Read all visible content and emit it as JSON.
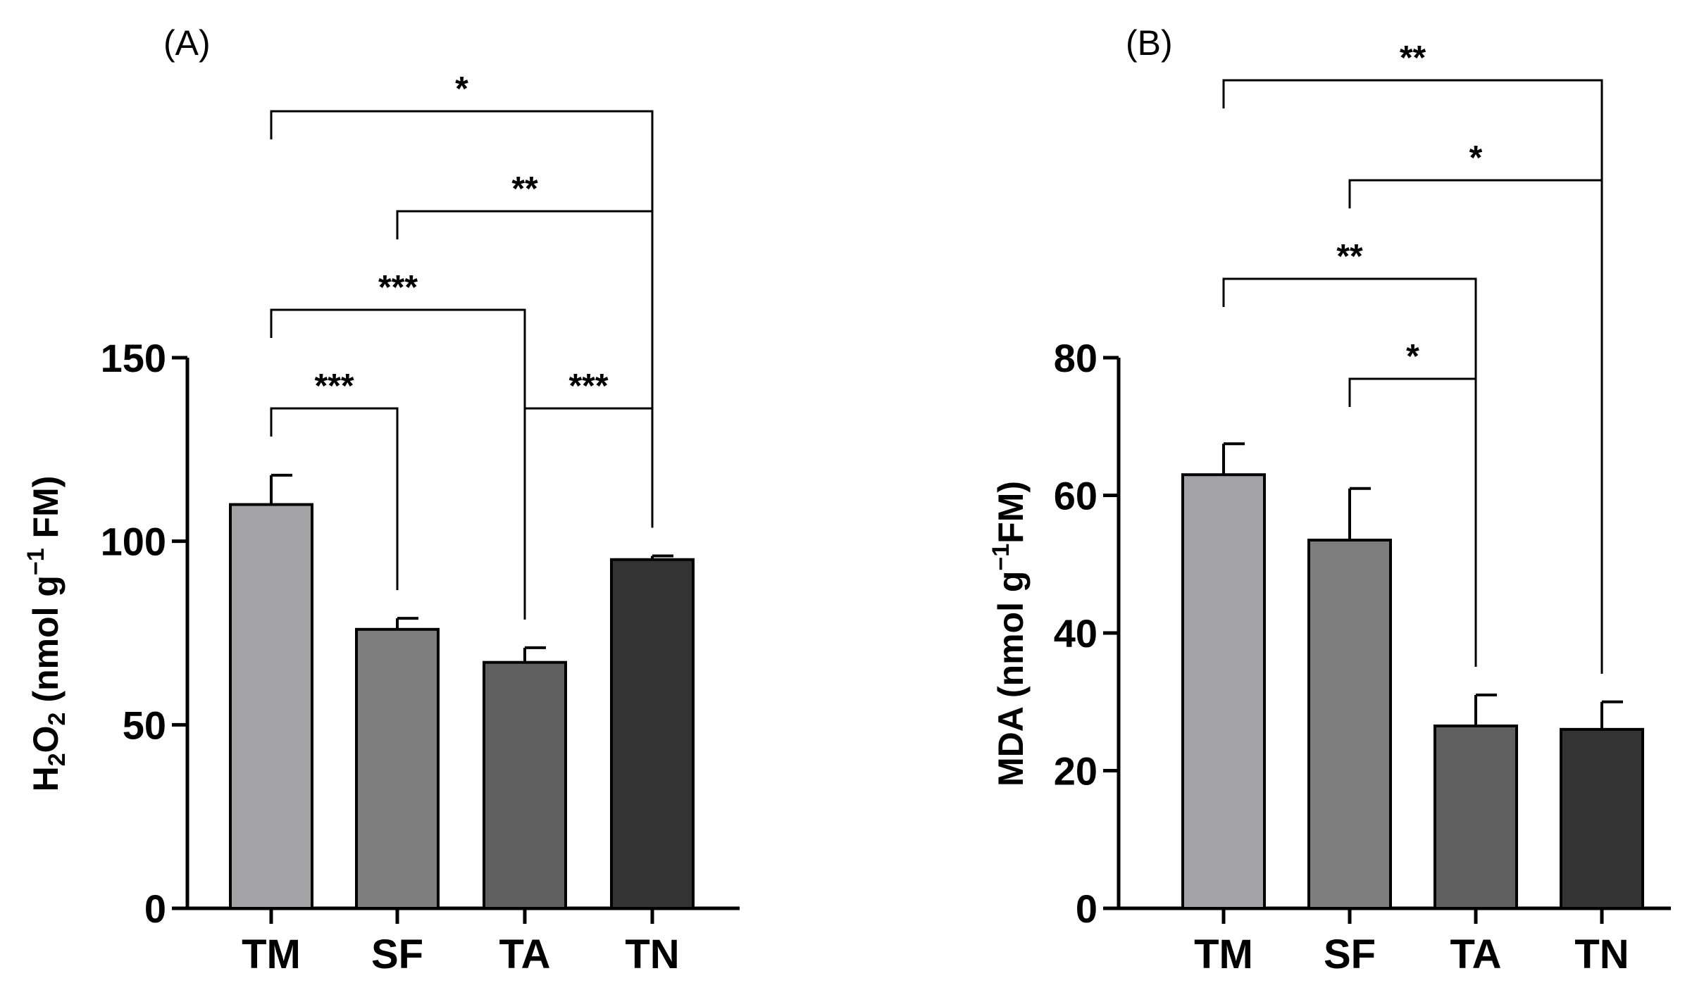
{
  "chart_data": [
    {
      "type": "bar",
      "panel_label": "(A)",
      "categories": [
        "TM",
        "SF",
        "TA",
        "TN"
      ],
      "values": [
        110,
        76,
        67,
        95
      ],
      "errors": [
        8,
        3,
        4,
        1
      ],
      "colors": [
        "#A3A3A6",
        "#7E7E7E",
        "#606060",
        "#333333"
      ],
      "ylabel": "H2O2 (nmol g−1 FM)",
      "ylabel_parts": {
        "a": "H",
        "a_sub": "2",
        "b": "O",
        "b_sub": "2",
        "c": " (nmol g",
        "c_sup": "−1",
        "d": " FM)"
      },
      "ylim": [
        0,
        150
      ],
      "yticks": [
        "0",
        "50",
        "100",
        "150"
      ],
      "yticks_values": [
        0,
        50,
        100,
        150
      ],
      "significance": [
        {
          "from": 0,
          "to": 1,
          "label": "***"
        },
        {
          "from": 2,
          "to": 3,
          "label": "***"
        },
        {
          "from": 0,
          "to": 2,
          "label": "***"
        },
        {
          "from": 1,
          "to": 3,
          "label": "**"
        },
        {
          "from": 0,
          "to": 3,
          "label": "*"
        }
      ]
    },
    {
      "type": "bar",
      "panel_label": "(B)",
      "categories": [
        "TM",
        "SF",
        "TA",
        "TN"
      ],
      "values": [
        63,
        53.5,
        26.5,
        26
      ],
      "errors": [
        4.5,
        7.5,
        4.5,
        4
      ],
      "colors": [
        "#A3A3A6",
        "#7E7E7E",
        "#606060",
        "#333333"
      ],
      "ylabel": "MDA (nmol g−1FM)",
      "ylabel_parts": {
        "a": "MDA (nmol g",
        "a_sup": "−1",
        "b": "FM)"
      },
      "ylim": [
        0,
        80
      ],
      "yticks": [
        "0",
        "20",
        "40",
        "60",
        "80"
      ],
      "yticks_values": [
        0,
        20,
        40,
        60,
        80
      ],
      "significance": [
        {
          "from": 1,
          "to": 2,
          "label": "*"
        },
        {
          "from": 0,
          "to": 2,
          "label": "**"
        },
        {
          "from": 1,
          "to": 3,
          "label": "*"
        },
        {
          "from": 0,
          "to": 3,
          "label": "**"
        }
      ]
    }
  ]
}
